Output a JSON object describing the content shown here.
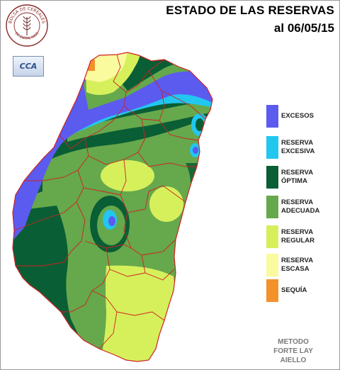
{
  "title_line1": "ESTADO DE LAS RESERVAS",
  "title_line2": "al 06/05/15",
  "logo": {
    "seal_text_top": "BOLSA DE CEREALES",
    "seal_text_bottom": "DE ENTRE RIOS",
    "badge": "CCA"
  },
  "legend": [
    {
      "line1": "EXCESOS",
      "line2": "",
      "color": "#5b5bf0"
    },
    {
      "line1": "RESERVA",
      "line2": "EXCESIVA",
      "color": "#22c7f0"
    },
    {
      "line1": "RESERVA",
      "line2": "ÓPTIMA",
      "color": "#0a5e35"
    },
    {
      "line1": "RESERVA",
      "line2": "ADECUADA",
      "color": "#66a84c"
    },
    {
      "line1": "RESERVA",
      "line2": "REGULAR",
      "color": "#d6f05c"
    },
    {
      "line1": "RESERVA",
      "line2": "ESCASA",
      "color": "#fafa9e"
    },
    {
      "line1": "SEQUÍA",
      "line2": "",
      "color": "#f3912b"
    }
  ],
  "method": {
    "line1": "METODO",
    "line2": "FORTE LAY",
    "line3": "AIELLO"
  }
}
